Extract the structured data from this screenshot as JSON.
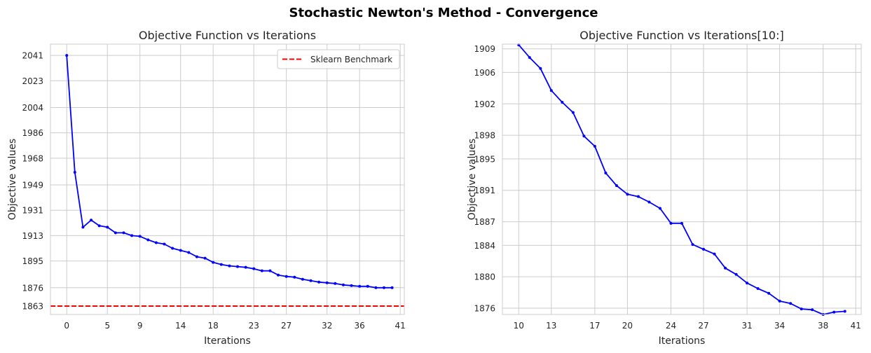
{
  "figure": {
    "title": "Stochastic Newton's Method - Convergence"
  },
  "chart_data": [
    {
      "type": "line",
      "title": "Objective Function vs Iterations",
      "xlabel": "Iterations",
      "ylabel": "Objective values",
      "xlim": [
        -2,
        41.5
      ],
      "ylim": [
        1857,
        2049
      ],
      "xticks": [
        0,
        5,
        9,
        14,
        18,
        23,
        27,
        32,
        36,
        41
      ],
      "yticks": [
        1863,
        1876,
        1895,
        1913,
        1931,
        1949,
        1968,
        1986,
        2004,
        2023,
        2041
      ],
      "grid": true,
      "legend": {
        "position": "top-right",
        "entries": [
          "Sklearn Benchmark"
        ]
      },
      "series": [
        {
          "color": "#0000ff",
          "marker": "dot",
          "x": [
            0,
            1,
            2,
            3,
            4,
            5,
            6,
            7,
            8,
            9,
            10,
            11,
            12,
            13,
            14,
            15,
            16,
            17,
            18,
            19,
            20,
            21,
            22,
            23,
            24,
            25,
            26,
            27,
            28,
            29,
            30,
            31,
            32,
            33,
            34,
            35,
            36,
            37,
            38,
            39,
            40
          ],
          "y": [
            2041,
            1958,
            1919,
            1924,
            1920,
            1919,
            1915,
            1915,
            1913,
            1912.5,
            1910,
            1908,
            1907,
            1904,
            1902.5,
            1901,
            1898,
            1897,
            1894,
            1892.5,
            1891.5,
            1891,
            1890.5,
            1889.5,
            1888,
            1888,
            1885,
            1884,
            1883.5,
            1882,
            1881,
            1880,
            1879.5,
            1879,
            1878,
            1877.5,
            1877,
            1877,
            1876,
            1876,
            1876
          ]
        },
        {
          "name": "Sklearn Benchmark",
          "color": "#ff0000",
          "style": "dashed",
          "hline": 1863
        }
      ]
    },
    {
      "type": "line",
      "title": "Objective Function vs Iterations[10:]",
      "xlabel": "Iterations",
      "ylabel": "Objective values",
      "xlim": [
        8.5,
        41.5
      ],
      "ylim": [
        1875.2,
        1909.6
      ],
      "xticks": [
        10,
        13,
        17,
        20,
        24,
        27,
        31,
        34,
        38,
        41
      ],
      "yticks": [
        1876,
        1880,
        1884,
        1887,
        1891,
        1895,
        1898,
        1902,
        1906,
        1909
      ],
      "grid": true,
      "series": [
        {
          "color": "#0000ff",
          "marker": "dot",
          "x": [
            10,
            11,
            12,
            13,
            14,
            15,
            16,
            17,
            18,
            19,
            20,
            21,
            22,
            23,
            24,
            25,
            26,
            27,
            28,
            29,
            30,
            31,
            32,
            33,
            34,
            35,
            36,
            37,
            38,
            39,
            40
          ],
          "y": [
            1909.5,
            1907.9,
            1906.5,
            1903.7,
            1902.2,
            1900.9,
            1897.9,
            1896.6,
            1893.2,
            1891.6,
            1890.5,
            1890.2,
            1889.5,
            1888.7,
            1886.8,
            1886.8,
            1884.1,
            1883.5,
            1882.9,
            1881.1,
            1880.3,
            1879.2,
            1878.5,
            1877.9,
            1876.9,
            1876.6,
            1875.9,
            1875.8,
            1875.2,
            1875.5,
            1875.6
          ]
        }
      ]
    }
  ]
}
